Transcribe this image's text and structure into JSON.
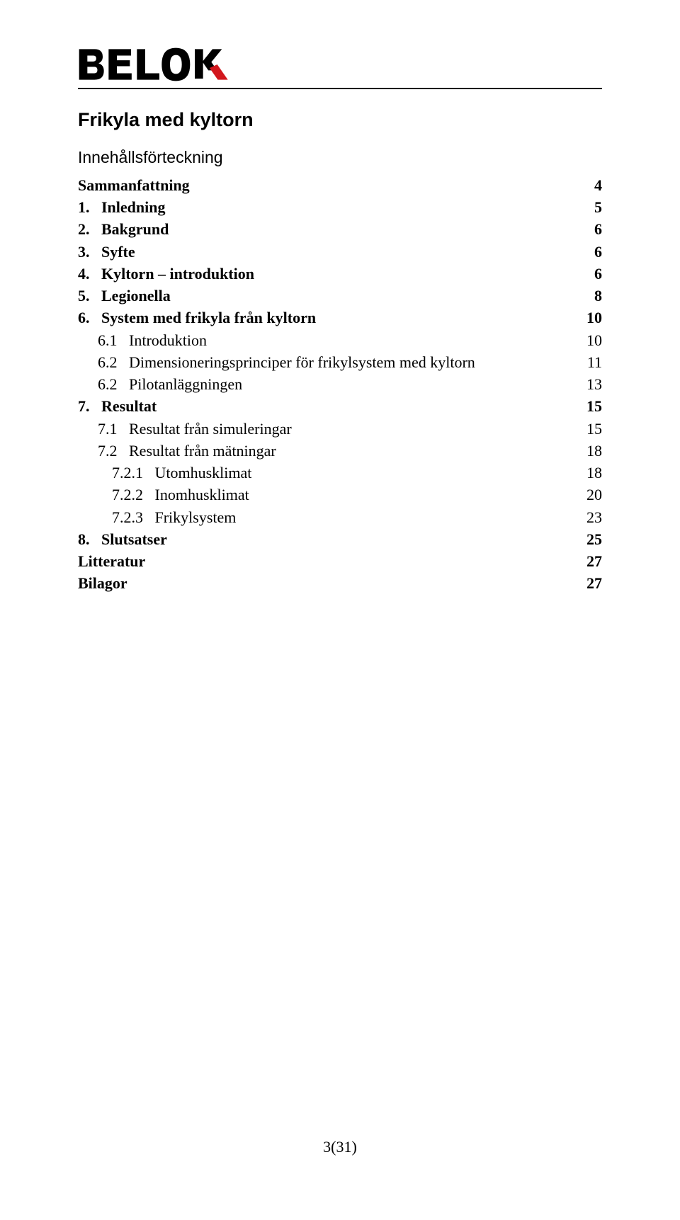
{
  "logo": {
    "text_color": "#000000",
    "accent_color": "#d2171d"
  },
  "title": "Frikyla med kyltorn",
  "subtitle": "Innehållsförteckning",
  "toc": [
    {
      "label": "Sammanfattning",
      "page": "4",
      "bold": true,
      "indent": 0
    },
    {
      "label": "1.   Inledning",
      "page": "5",
      "bold": true,
      "indent": 0
    },
    {
      "label": "2.   Bakgrund",
      "page": "6",
      "bold": true,
      "indent": 0
    },
    {
      "label": "3.   Syfte",
      "page": "6",
      "bold": true,
      "indent": 0
    },
    {
      "label": "4.   Kyltorn – introduktion",
      "page": "6",
      "bold": true,
      "indent": 0
    },
    {
      "label": "5.   Legionella",
      "page": "8",
      "bold": true,
      "indent": 0
    },
    {
      "label": "6.   System med frikyla från kyltorn",
      "page": "10",
      "bold": true,
      "indent": 0
    },
    {
      "label": "6.1   Introduktion",
      "page": "10",
      "bold": false,
      "indent": 1
    },
    {
      "label": "6.2   Dimensioneringsprinciper för frikylsystem med kyltorn",
      "page": "11",
      "bold": false,
      "indent": 1
    },
    {
      "label": "6.2   Pilotanläggningen",
      "page": "13",
      "bold": false,
      "indent": 1
    },
    {
      "label": "7.   Resultat",
      "page": "15",
      "bold": true,
      "indent": 0
    },
    {
      "label": "7.1   Resultat från simuleringar",
      "page": "15",
      "bold": false,
      "indent": 1
    },
    {
      "label": "7.2   Resultat från mätningar",
      "page": "18",
      "bold": false,
      "indent": 1
    },
    {
      "label": "7.2.1   Utomhusklimat",
      "page": "18",
      "bold": false,
      "indent": 2
    },
    {
      "label": "7.2.2   Inomhusklimat",
      "page": "20",
      "bold": false,
      "indent": 2
    },
    {
      "label": "7.2.3   Frikylsystem",
      "page": "23",
      "bold": false,
      "indent": 2
    },
    {
      "label": "8.   Slutsatser",
      "page": "25",
      "bold": true,
      "indent": 0
    },
    {
      "label": "Litteratur",
      "page": "27",
      "bold": true,
      "indent": 0
    },
    {
      "label": "Bilagor",
      "page": "27",
      "bold": true,
      "indent": 0
    }
  ],
  "footer": "3(31)"
}
